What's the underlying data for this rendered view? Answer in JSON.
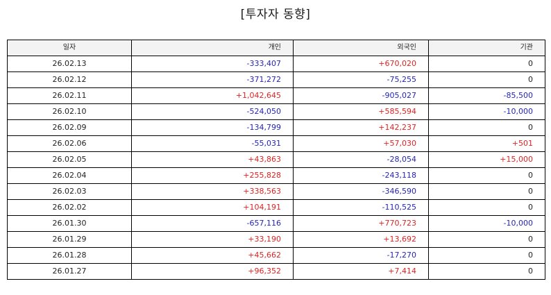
{
  "title": "[투자자 동향]",
  "colors": {
    "positive": "#e02222",
    "negative": "#2424b8",
    "neutral": "#222222"
  },
  "table": {
    "headers": [
      "일자",
      "개인",
      "외국인",
      "기관"
    ],
    "rows": [
      [
        "26.02.13",
        "-333,407",
        "+670,020",
        "0"
      ],
      [
        "26.02.12",
        "-371,272",
        "-75,255",
        "0"
      ],
      [
        "26.02.11",
        "+1,042,645",
        "-905,027",
        "-85,500"
      ],
      [
        "26.02.10",
        "-524,050",
        "+585,594",
        "-10,000"
      ],
      [
        "26.02.09",
        "-134,799",
        "+142,237",
        "0"
      ],
      [
        "26.02.06",
        "-55,031",
        "+57,030",
        "+501"
      ],
      [
        "26.02.05",
        "+43,863",
        "-28,054",
        "+15,000"
      ],
      [
        "26.02.04",
        "+255,828",
        "-243,118",
        "0"
      ],
      [
        "26.02.03",
        "+338,563",
        "-346,590",
        "0"
      ],
      [
        "26.02.02",
        "+104,191",
        "-110,525",
        "0"
      ],
      [
        "26.01.30",
        "-657,116",
        "+770,723",
        "-10,000"
      ],
      [
        "26.01.29",
        "+33,190",
        "+13,692",
        "0"
      ],
      [
        "26.01.28",
        "+45,662",
        "-17,270",
        "0"
      ],
      [
        "26.01.27",
        "+96,352",
        "+7,414",
        "0"
      ]
    ]
  }
}
